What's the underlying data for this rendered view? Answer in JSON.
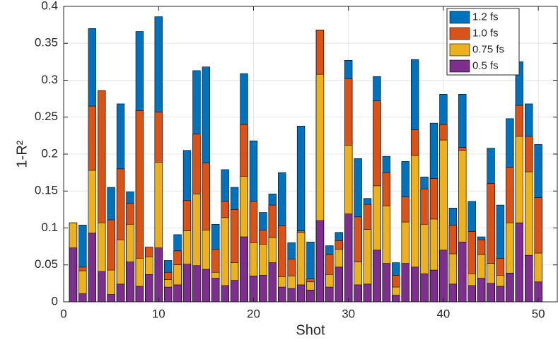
{
  "chart_data": {
    "type": "bar",
    "overlap": true,
    "xlabel": "Shot",
    "ylabel": "1-R²",
    "x": [
      1,
      2,
      3,
      4,
      5,
      6,
      7,
      8,
      9,
      10,
      11,
      12,
      13,
      14,
      15,
      16,
      17,
      18,
      19,
      20,
      21,
      22,
      23,
      24,
      25,
      26,
      27,
      28,
      29,
      30,
      31,
      32,
      33,
      34,
      35,
      36,
      37,
      38,
      39,
      40,
      41,
      42,
      43,
      44,
      45,
      46,
      47,
      48,
      49,
      50
    ],
    "series": [
      {
        "name": "1.2 fs",
        "color": "#0072bd",
        "values": [
          0.107,
          0.104,
          0.37,
          0.286,
          0.155,
          0.268,
          0.149,
          0.366,
          0.074,
          0.386,
          0.056,
          0.091,
          0.205,
          0.313,
          0.318,
          0.105,
          0.179,
          0.155,
          0.309,
          0.218,
          0.121,
          0.146,
          0.175,
          0.08,
          0.238,
          0.081,
          0.368,
          0.076,
          0.094,
          0.327,
          0.194,
          0.14,
          0.305,
          0.197,
          0.053,
          0.19,
          0.328,
          0.169,
          0.242,
          0.281,
          0.127,
          0.281,
          0.136,
          0.088,
          0.208,
          0.131,
          0.248,
          0.325,
          0.268,
          0.213
        ]
      },
      {
        "name": "1.0 fs",
        "color": "#d95319",
        "values": [
          0.107,
          0.047,
          0.265,
          0.286,
          0.111,
          0.18,
          0.133,
          0.259,
          0.074,
          0.257,
          0.04,
          0.069,
          0.137,
          0.227,
          0.188,
          0.071,
          0.136,
          0.125,
          0.24,
          0.136,
          0.097,
          0.131,
          0.103,
          0.058,
          0.096,
          0.031,
          0.368,
          0.064,
          0.083,
          0.302,
          0.115,
          0.132,
          0.272,
          0.175,
          0.036,
          0.142,
          0.233,
          0.153,
          0.167,
          0.24,
          0.104,
          0.209,
          0.095,
          0.084,
          0.16,
          0.059,
          0.182,
          0.266,
          0.224,
          0.141
        ]
      },
      {
        "name": "0.75 fs",
        "color": "#edb120",
        "values": [
          0.107,
          0.042,
          0.178,
          0.107,
          0.043,
          0.084,
          0.105,
          0.059,
          0.061,
          0.189,
          0.03,
          0.05,
          0.096,
          0.146,
          0.097,
          0.04,
          0.114,
          0.053,
          0.17,
          0.08,
          0.078,
          0.087,
          0.034,
          0.035,
          0.094,
          0.027,
          0.308,
          0.037,
          0.071,
          0.212,
          0.054,
          0.098,
          0.157,
          0.13,
          0.02,
          0.108,
          0.198,
          0.105,
          0.112,
          0.219,
          0.065,
          0.205,
          0.038,
          0.064,
          0.052,
          0.036,
          0.107,
          0.224,
          0.176,
          0.066
        ]
      },
      {
        "name": "0.5 fs",
        "color": "#7e2f8e",
        "values": [
          0.073,
          0.011,
          0.093,
          0.041,
          0.01,
          0.024,
          0.054,
          0.021,
          0.037,
          0.073,
          0.02,
          0.023,
          0.051,
          0.049,
          0.044,
          0.032,
          0.022,
          0.029,
          0.088,
          0.035,
          0.036,
          0.053,
          0.02,
          0.018,
          0.023,
          0.016,
          0.11,
          0.02,
          0.047,
          0.119,
          0.023,
          0.024,
          0.07,
          0.052,
          0.009,
          0.052,
          0.047,
          0.038,
          0.043,
          0.07,
          0.024,
          0.081,
          0.022,
          0.032,
          0.025,
          0.021,
          0.039,
          0.107,
          0.063,
          0.027
        ]
      }
    ],
    "xlim": [
      0,
      52
    ],
    "xticks": [
      0,
      10,
      20,
      30,
      40,
      50
    ],
    "ylim": [
      0,
      0.4
    ],
    "yticks": [
      0,
      0.05,
      0.1,
      0.15,
      0.2,
      0.25,
      0.3,
      0.35,
      0.4
    ],
    "grid": true,
    "legend": "top-right"
  }
}
